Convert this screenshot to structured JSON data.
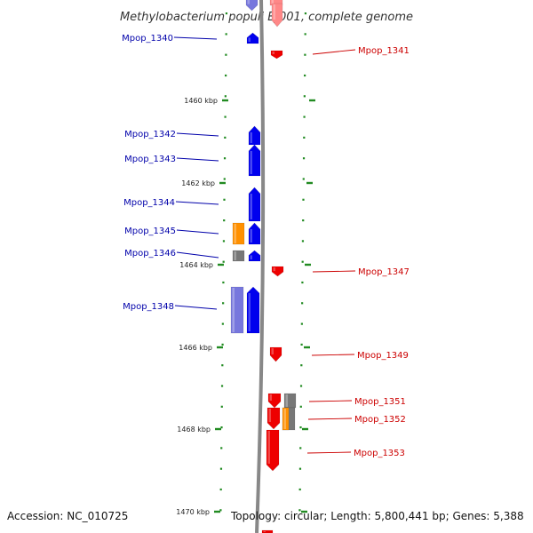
{
  "title": "Methylobacterium populi BJ001, complete genome",
  "footer": {
    "accession": "Accession: NC_010725",
    "stats": "Topology: circular; Length: 5,800,441 bp; Genes: 5,388"
  },
  "colors": {
    "forward": "#0000ee",
    "reverse": "#ee0000",
    "forward_light": "#7777dd",
    "reverse_light": "#ff8888",
    "orange": "#ff9000",
    "grey": "#777777",
    "backbone": "#888888",
    "tick": "#228b22",
    "forward_label": "#0000aa",
    "reverse_label": "#cc0000",
    "footer_text": "#111111"
  },
  "axis": {
    "unit": "kbp",
    "ticks": [
      {
        "label": "1460 kbp"
      },
      {
        "label": "1462 kbp"
      },
      {
        "label": "1464 kbp"
      },
      {
        "label": "1466 kbp"
      },
      {
        "label": "1468 kbp"
      },
      {
        "label": "1470 kbp"
      }
    ]
  },
  "genes": [
    {
      "name": "Mpop_1340",
      "strand": "+",
      "color": "forward"
    },
    {
      "name": "Mpop_1341",
      "strand": "-",
      "color": "reverse"
    },
    {
      "name": "Mpop_1342",
      "strand": "+",
      "color": "forward"
    },
    {
      "name": "Mpop_1343",
      "strand": "+",
      "color": "forward"
    },
    {
      "name": "Mpop_1344",
      "strand": "+",
      "color": "forward"
    },
    {
      "name": "Mpop_1345",
      "strand": "+",
      "color": "forward"
    },
    {
      "name": "Mpop_1346",
      "strand": "+",
      "color": "forward"
    },
    {
      "name": "Mpop_1347",
      "strand": "-",
      "color": "reverse"
    },
    {
      "name": "Mpop_1348",
      "strand": "+",
      "color": "forward"
    },
    {
      "name": "Mpop_1349",
      "strand": "-",
      "color": "reverse"
    },
    {
      "name": "Mpop_1351",
      "strand": "-",
      "color": "reverse"
    },
    {
      "name": "Mpop_1352",
      "strand": "-",
      "color": "reverse"
    },
    {
      "name": "Mpop_1353",
      "strand": "-",
      "color": "reverse"
    }
  ]
}
